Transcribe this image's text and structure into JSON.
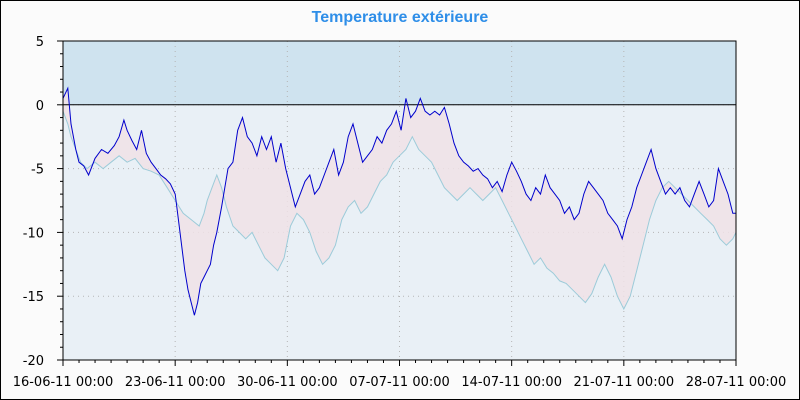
{
  "chart_data": {
    "type": "line",
    "title": "Temperature extérieure",
    "title_color": "#2e8ee8",
    "xlabel": "",
    "ylabel": "",
    "ylim": [
      -20,
      5
    ],
    "yticks": [
      5,
      0,
      -5,
      -10,
      -15,
      -20
    ],
    "x_start": "16-06-11 00:00",
    "x_end": "28-07-11 00:00",
    "xtick_labels": [
      "16-06-11 00:00",
      "23-06-11 00:00",
      "30-06-11 00:00",
      "07-07-11 00:00",
      "14-07-11 00:00",
      "21-07-11 00:00",
      "28-07-11 00:00"
    ],
    "xtick_day_offsets": [
      0,
      7,
      14,
      21,
      28,
      35,
      42
    ],
    "grid": true,
    "zero_line": true,
    "colors": {
      "background_above_zero": "#cfe3ef",
      "background_below_zero": "#e9f0f6",
      "fill_between": "#f0e2e6",
      "series_main": "#0000cc",
      "series_secondary": "#9ccbd9"
    },
    "series": [
      {
        "key": "main",
        "color": "#0000cc",
        "points": [
          [
            0.0,
            0.5
          ],
          [
            0.3,
            1.3
          ],
          [
            0.5,
            -1.5
          ],
          [
            0.8,
            -3.5
          ],
          [
            1.0,
            -4.5
          ],
          [
            1.3,
            -4.8
          ],
          [
            1.6,
            -5.5
          ],
          [
            2.0,
            -4.2
          ],
          [
            2.4,
            -3.5
          ],
          [
            2.8,
            -3.8
          ],
          [
            3.2,
            -3.2
          ],
          [
            3.5,
            -2.5
          ],
          [
            3.8,
            -1.2
          ],
          [
            4.0,
            -2.0
          ],
          [
            4.3,
            -2.8
          ],
          [
            4.6,
            -3.5
          ],
          [
            4.9,
            -2.0
          ],
          [
            5.2,
            -3.8
          ],
          [
            5.5,
            -4.5
          ],
          [
            5.8,
            -5.0
          ],
          [
            6.1,
            -5.5
          ],
          [
            6.4,
            -5.8
          ],
          [
            6.7,
            -6.2
          ],
          [
            7.0,
            -7.0
          ],
          [
            7.2,
            -9.0
          ],
          [
            7.4,
            -11.0
          ],
          [
            7.6,
            -13.0
          ],
          [
            7.8,
            -14.5
          ],
          [
            8.0,
            -15.5
          ],
          [
            8.2,
            -16.5
          ],
          [
            8.4,
            -15.5
          ],
          [
            8.6,
            -14.0
          ],
          [
            8.8,
            -13.5
          ],
          [
            9.0,
            -13.0
          ],
          [
            9.2,
            -12.5
          ],
          [
            9.4,
            -11.0
          ],
          [
            9.6,
            -10.0
          ],
          [
            9.9,
            -8.0
          ],
          [
            10.1,
            -6.5
          ],
          [
            10.3,
            -5.0
          ],
          [
            10.6,
            -4.5
          ],
          [
            10.9,
            -2.0
          ],
          [
            11.2,
            -1.0
          ],
          [
            11.5,
            -2.5
          ],
          [
            11.8,
            -3.0
          ],
          [
            12.1,
            -4.0
          ],
          [
            12.4,
            -2.5
          ],
          [
            12.7,
            -3.5
          ],
          [
            13.0,
            -2.5
          ],
          [
            13.3,
            -4.5
          ],
          [
            13.6,
            -3.0
          ],
          [
            13.9,
            -5.0
          ],
          [
            14.2,
            -6.5
          ],
          [
            14.5,
            -8.0
          ],
          [
            14.8,
            -7.0
          ],
          [
            15.1,
            -6.0
          ],
          [
            15.4,
            -5.5
          ],
          [
            15.7,
            -7.0
          ],
          [
            16.0,
            -6.5
          ],
          [
            16.3,
            -5.5
          ],
          [
            16.6,
            -4.5
          ],
          [
            16.9,
            -3.5
          ],
          [
            17.2,
            -5.5
          ],
          [
            17.5,
            -4.5
          ],
          [
            17.8,
            -2.5
          ],
          [
            18.1,
            -1.5
          ],
          [
            18.4,
            -3.0
          ],
          [
            18.7,
            -4.5
          ],
          [
            19.0,
            -4.0
          ],
          [
            19.3,
            -3.5
          ],
          [
            19.6,
            -2.5
          ],
          [
            19.9,
            -3.0
          ],
          [
            20.2,
            -2.0
          ],
          [
            20.5,
            -1.5
          ],
          [
            20.8,
            -0.5
          ],
          [
            21.1,
            -2.0
          ],
          [
            21.4,
            0.5
          ],
          [
            21.7,
            -1.0
          ],
          [
            22.0,
            -0.5
          ],
          [
            22.3,
            0.5
          ],
          [
            22.6,
            -0.5
          ],
          [
            22.9,
            -0.8
          ],
          [
            23.2,
            -0.5
          ],
          [
            23.5,
            -0.8
          ],
          [
            23.8,
            -0.2
          ],
          [
            24.1,
            -1.5
          ],
          [
            24.4,
            -3.0
          ],
          [
            24.7,
            -4.0
          ],
          [
            25.0,
            -4.5
          ],
          [
            25.3,
            -4.8
          ],
          [
            25.6,
            -5.2
          ],
          [
            25.9,
            -5.0
          ],
          [
            26.2,
            -5.5
          ],
          [
            26.5,
            -5.8
          ],
          [
            26.8,
            -6.5
          ],
          [
            27.1,
            -6.0
          ],
          [
            27.4,
            -6.8
          ],
          [
            27.7,
            -5.5
          ],
          [
            28.0,
            -4.5
          ],
          [
            28.3,
            -5.2
          ],
          [
            28.6,
            -6.0
          ],
          [
            28.9,
            -7.0
          ],
          [
            29.2,
            -7.5
          ],
          [
            29.5,
            -6.5
          ],
          [
            29.8,
            -7.0
          ],
          [
            30.1,
            -5.5
          ],
          [
            30.4,
            -6.5
          ],
          [
            30.7,
            -7.0
          ],
          [
            31.0,
            -7.5
          ],
          [
            31.3,
            -8.5
          ],
          [
            31.6,
            -8.0
          ],
          [
            31.9,
            -9.0
          ],
          [
            32.2,
            -8.5
          ],
          [
            32.5,
            -7.0
          ],
          [
            32.8,
            -6.0
          ],
          [
            33.1,
            -6.5
          ],
          [
            33.4,
            -7.0
          ],
          [
            33.7,
            -7.5
          ],
          [
            34.0,
            -8.5
          ],
          [
            34.3,
            -9.0
          ],
          [
            34.6,
            -9.5
          ],
          [
            34.9,
            -10.5
          ],
          [
            35.2,
            -9.0
          ],
          [
            35.5,
            -8.0
          ],
          [
            35.8,
            -6.5
          ],
          [
            36.1,
            -5.5
          ],
          [
            36.4,
            -4.5
          ],
          [
            36.7,
            -3.5
          ],
          [
            37.0,
            -5.0
          ],
          [
            37.3,
            -6.0
          ],
          [
            37.6,
            -7.0
          ],
          [
            37.9,
            -6.5
          ],
          [
            38.2,
            -7.0
          ],
          [
            38.5,
            -6.5
          ],
          [
            38.8,
            -7.5
          ],
          [
            39.1,
            -8.0
          ],
          [
            39.4,
            -7.0
          ],
          [
            39.7,
            -6.0
          ],
          [
            40.0,
            -7.0
          ],
          [
            40.3,
            -8.0
          ],
          [
            40.6,
            -7.5
          ],
          [
            40.9,
            -5.0
          ],
          [
            41.2,
            -6.0
          ],
          [
            41.5,
            -7.0
          ],
          [
            41.8,
            -8.5
          ],
          [
            42.0,
            -8.5
          ]
        ]
      },
      {
        "key": "secondary",
        "color": "#9ccbd9",
        "points": [
          [
            0.0,
            -0.5
          ],
          [
            0.3,
            -1.5
          ],
          [
            0.5,
            -2.5
          ],
          [
            0.8,
            -3.5
          ],
          [
            1.1,
            -4.5
          ],
          [
            1.5,
            -5.0
          ],
          [
            2.0,
            -4.5
          ],
          [
            2.5,
            -5.0
          ],
          [
            3.0,
            -4.5
          ],
          [
            3.5,
            -4.0
          ],
          [
            4.0,
            -4.5
          ],
          [
            4.5,
            -4.2
          ],
          [
            5.0,
            -5.0
          ],
          [
            5.5,
            -5.2
          ],
          [
            6.0,
            -5.5
          ],
          [
            6.5,
            -6.5
          ],
          [
            7.0,
            -7.5
          ],
          [
            7.5,
            -8.5
          ],
          [
            8.0,
            -9.0
          ],
          [
            8.5,
            -9.5
          ],
          [
            8.8,
            -8.5
          ],
          [
            9.0,
            -7.5
          ],
          [
            9.3,
            -6.5
          ],
          [
            9.6,
            -5.5
          ],
          [
            9.9,
            -6.5
          ],
          [
            10.2,
            -8.0
          ],
          [
            10.6,
            -9.5
          ],
          [
            11.0,
            -10.0
          ],
          [
            11.4,
            -10.5
          ],
          [
            11.8,
            -10.0
          ],
          [
            12.2,
            -11.0
          ],
          [
            12.6,
            -12.0
          ],
          [
            13.0,
            -12.5
          ],
          [
            13.4,
            -13.0
          ],
          [
            13.8,
            -12.0
          ],
          [
            14.2,
            -9.5
          ],
          [
            14.6,
            -8.5
          ],
          [
            15.0,
            -9.0
          ],
          [
            15.4,
            -10.0
          ],
          [
            15.8,
            -11.5
          ],
          [
            16.2,
            -12.5
          ],
          [
            16.6,
            -12.0
          ],
          [
            17.0,
            -11.0
          ],
          [
            17.4,
            -9.0
          ],
          [
            17.8,
            -8.0
          ],
          [
            18.2,
            -7.5
          ],
          [
            18.6,
            -8.5
          ],
          [
            19.0,
            -8.0
          ],
          [
            19.4,
            -7.0
          ],
          [
            19.8,
            -6.0
          ],
          [
            20.2,
            -5.5
          ],
          [
            20.6,
            -4.5
          ],
          [
            21.0,
            -4.0
          ],
          [
            21.4,
            -3.5
          ],
          [
            21.8,
            -2.5
          ],
          [
            22.2,
            -3.5
          ],
          [
            22.6,
            -4.0
          ],
          [
            23.0,
            -4.5
          ],
          [
            23.4,
            -5.5
          ],
          [
            23.8,
            -6.5
          ],
          [
            24.2,
            -7.0
          ],
          [
            24.6,
            -7.5
          ],
          [
            25.0,
            -7.0
          ],
          [
            25.4,
            -6.5
          ],
          [
            25.8,
            -7.0
          ],
          [
            26.2,
            -7.5
          ],
          [
            26.6,
            -7.0
          ],
          [
            27.0,
            -6.5
          ],
          [
            27.4,
            -7.5
          ],
          [
            27.8,
            -8.5
          ],
          [
            28.2,
            -9.5
          ],
          [
            28.6,
            -10.5
          ],
          [
            29.0,
            -11.5
          ],
          [
            29.4,
            -12.5
          ],
          [
            29.8,
            -12.0
          ],
          [
            30.2,
            -12.8
          ],
          [
            30.6,
            -13.2
          ],
          [
            31.0,
            -13.8
          ],
          [
            31.4,
            -14.0
          ],
          [
            31.8,
            -14.5
          ],
          [
            32.2,
            -15.0
          ],
          [
            32.6,
            -15.5
          ],
          [
            33.0,
            -14.8
          ],
          [
            33.4,
            -13.5
          ],
          [
            33.8,
            -12.5
          ],
          [
            34.2,
            -13.5
          ],
          [
            34.6,
            -15.0
          ],
          [
            35.0,
            -16.0
          ],
          [
            35.4,
            -15.0
          ],
          [
            35.8,
            -13.0
          ],
          [
            36.2,
            -11.0
          ],
          [
            36.6,
            -9.0
          ],
          [
            37.0,
            -7.5
          ],
          [
            37.4,
            -6.5
          ],
          [
            37.8,
            -6.0
          ],
          [
            38.2,
            -6.5
          ],
          [
            38.6,
            -7.0
          ],
          [
            39.0,
            -7.5
          ],
          [
            39.4,
            -8.0
          ],
          [
            39.8,
            -8.5
          ],
          [
            40.2,
            -9.0
          ],
          [
            40.6,
            -9.5
          ],
          [
            41.0,
            -10.5
          ],
          [
            41.4,
            -11.0
          ],
          [
            41.8,
            -10.5
          ],
          [
            42.0,
            -10.0
          ]
        ]
      }
    ]
  }
}
